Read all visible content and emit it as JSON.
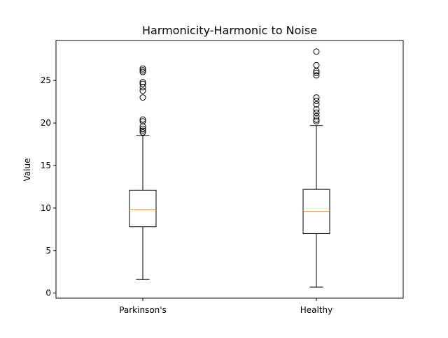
{
  "chart_data": {
    "type": "box",
    "title": "Harmonicity-Harmonic to Noise",
    "xlabel": "",
    "ylabel": "Value",
    "categories": [
      "Parkinson's",
      "Healthy"
    ],
    "ylim": [
      -0.6,
      29.7
    ],
    "yticks": [
      0,
      5,
      10,
      15,
      20,
      25
    ],
    "grid": false,
    "series": [
      {
        "whisker_low": 1.6,
        "q1": 7.8,
        "median": 9.8,
        "q3": 12.1,
        "whisker_high": 18.5,
        "outliers": [
          18.9,
          19.1,
          19.3,
          19.6,
          20.2,
          20.4,
          23.0,
          23.8,
          24.2,
          24.6,
          24.8,
          26.0,
          26.2,
          26.4
        ]
      },
      {
        "whisker_low": 0.7,
        "q1": 7.0,
        "median": 9.6,
        "q3": 12.2,
        "whisker_high": 19.7,
        "outliers": [
          20.2,
          20.4,
          20.8,
          21.2,
          21.6,
          22.2,
          22.6,
          23.0,
          25.6,
          25.9,
          26.1,
          26.8,
          28.4
        ]
      }
    ],
    "colors": {
      "box": "#000000",
      "median": "#ff7f0e",
      "frame": "#000000"
    }
  }
}
